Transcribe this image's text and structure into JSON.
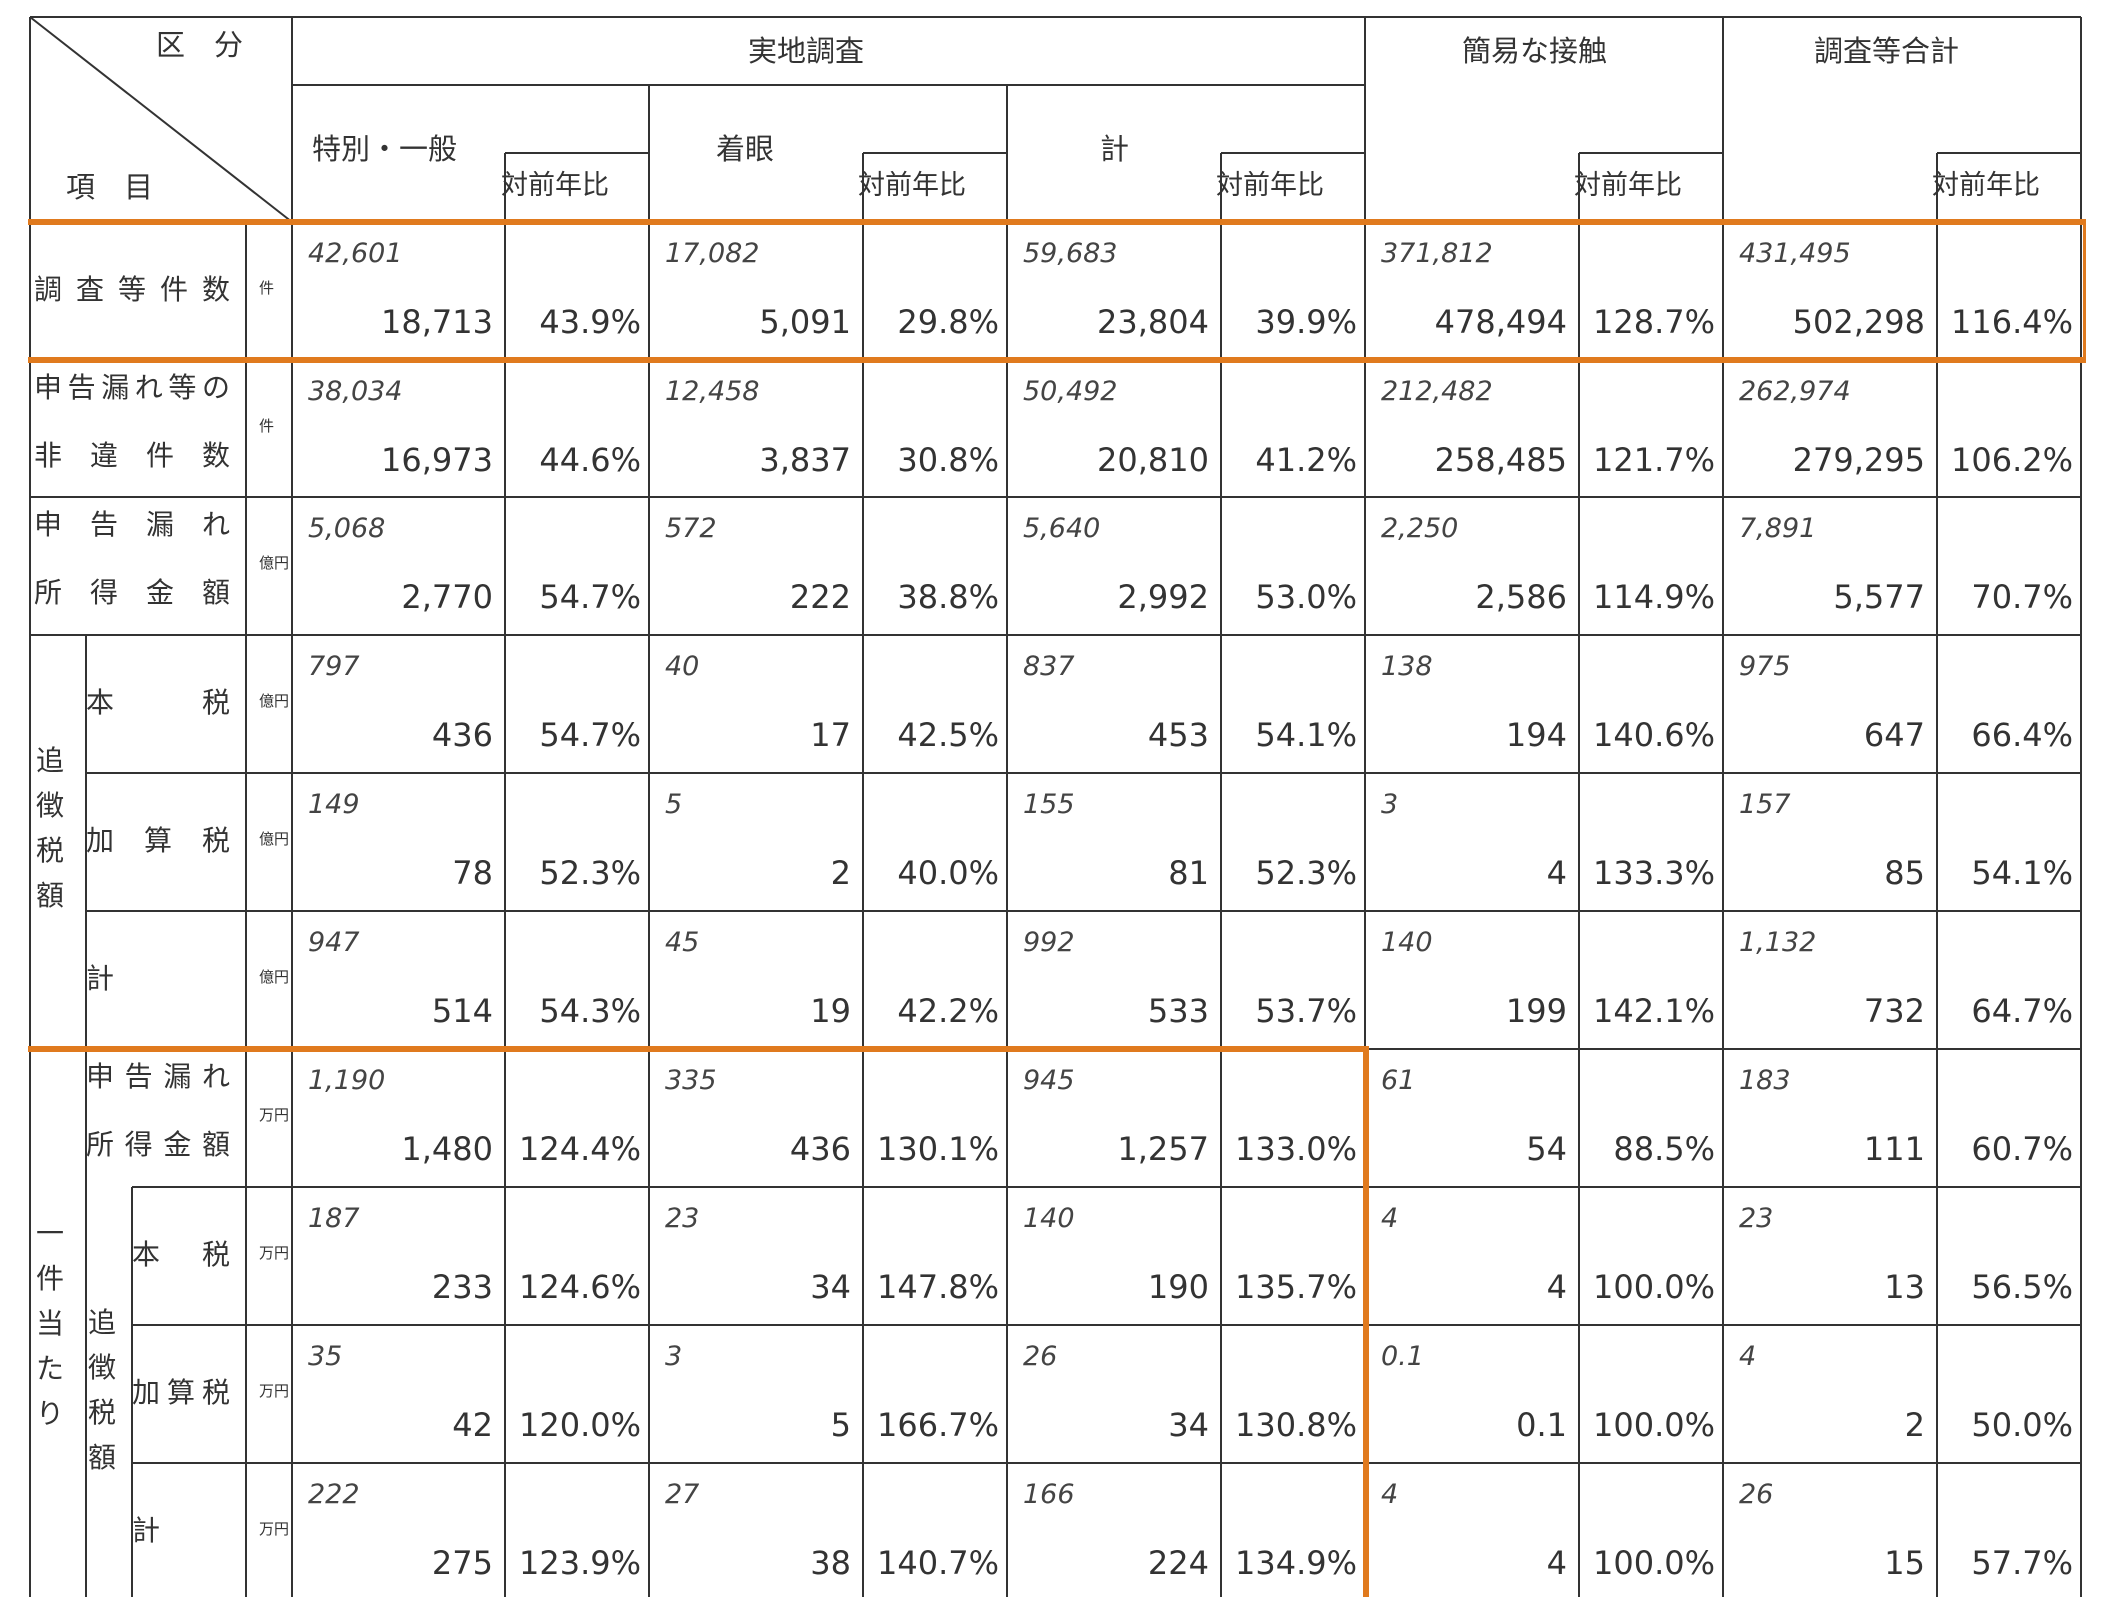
{
  "header": {
    "corner_top": "区　分",
    "corner_bottom": "項　目",
    "group_jitchi": "実地調査",
    "group_kan-i": "簡易な接触",
    "group_total": "調査等合計",
    "tokubetsu": "特別・一般",
    "chakugan": "着眼",
    "kei": "計",
    "ratio": "対前年比"
  },
  "rows": [
    {
      "label": [
        "調査等件数"
      ],
      "unit": "件",
      "values": [
        [
          "42,601",
          "18,713",
          "43.9%"
        ],
        [
          "17,082",
          "5,091",
          "29.8%"
        ],
        [
          "59,683",
          "23,804",
          "39.9%"
        ],
        [
          "371,812",
          "478,494",
          "128.7%"
        ],
        [
          "431,495",
          "502,298",
          "116.4%"
        ]
      ]
    },
    {
      "label": [
        "申告漏れ等の",
        "非違件数"
      ],
      "unit": "件",
      "values": [
        [
          "38,034",
          "16,973",
          "44.6%"
        ],
        [
          "12,458",
          "3,837",
          "30.8%"
        ],
        [
          "50,492",
          "20,810",
          "41.2%"
        ],
        [
          "212,482",
          "258,485",
          "121.7%"
        ],
        [
          "262,974",
          "279,295",
          "106.2%"
        ]
      ]
    },
    {
      "label": [
        "申告漏れ",
        "所得金額"
      ],
      "unit": "億円",
      "values": [
        [
          "5,068",
          "2,770",
          "54.7%"
        ],
        [
          "572",
          "222",
          "38.8%"
        ],
        [
          "5,640",
          "2,992",
          "53.0%"
        ],
        [
          "2,250",
          "2,586",
          "114.9%"
        ],
        [
          "7,891",
          "5,577",
          "70.7%"
        ]
      ]
    },
    {
      "label": [
        "本　　税"
      ],
      "unit": "億円",
      "values": [
        [
          "797",
          "436",
          "54.7%"
        ],
        [
          "40",
          "17",
          "42.5%"
        ],
        [
          "837",
          "453",
          "54.1%"
        ],
        [
          "138",
          "194",
          "140.6%"
        ],
        [
          "975",
          "647",
          "66.4%"
        ]
      ]
    },
    {
      "label": [
        "加算税"
      ],
      "unit": "億円",
      "values": [
        [
          "149",
          "78",
          "52.3%"
        ],
        [
          "5",
          "2",
          "40.0%"
        ],
        [
          "155",
          "81",
          "52.3%"
        ],
        [
          "3",
          "4",
          "133.3%"
        ],
        [
          "157",
          "85",
          "54.1%"
        ]
      ]
    },
    {
      "label": [
        "計"
      ],
      "unit": "億円",
      "values": [
        [
          "947",
          "514",
          "54.3%"
        ],
        [
          "45",
          "19",
          "42.2%"
        ],
        [
          "992",
          "533",
          "53.7%"
        ],
        [
          "140",
          "199",
          "142.1%"
        ],
        [
          "1,132",
          "732",
          "64.7%"
        ]
      ]
    },
    {
      "label": [
        "申告漏れ",
        "所得金額"
      ],
      "unit": "万円",
      "values": [
        [
          "1,190",
          "1,480",
          "124.4%"
        ],
        [
          "335",
          "436",
          "130.1%"
        ],
        [
          "945",
          "1,257",
          "133.0%"
        ],
        [
          "61",
          "54",
          "88.5%"
        ],
        [
          "183",
          "111",
          "60.7%"
        ]
      ]
    },
    {
      "label": [
        "本　税"
      ],
      "unit": "万円",
      "values": [
        [
          "187",
          "233",
          "124.6%"
        ],
        [
          "23",
          "34",
          "147.8%"
        ],
        [
          "140",
          "190",
          "135.7%"
        ],
        [
          "4",
          "4",
          "100.0%"
        ],
        [
          "23",
          "13",
          "56.5%"
        ]
      ]
    },
    {
      "label": [
        "加算税"
      ],
      "unit": "万円",
      "values": [
        [
          "35",
          "42",
          "120.0%"
        ],
        [
          "3",
          "5",
          "166.7%"
        ],
        [
          "26",
          "34",
          "130.8%"
        ],
        [
          "0.1",
          "0.1",
          "100.0%"
        ],
        [
          "4",
          "2",
          "50.0%"
        ]
      ]
    },
    {
      "label": [
        "計"
      ],
      "unit": "万円",
      "values": [
        [
          "222",
          "275",
          "123.9%"
        ],
        [
          "27",
          "38",
          "140.7%"
        ],
        [
          "166",
          "224",
          "134.9%"
        ],
        [
          "4",
          "4",
          "100.0%"
        ],
        [
          "26",
          "15",
          "57.7%"
        ]
      ]
    }
  ],
  "side_labels": {
    "tsuicho": "追徴税額",
    "ikken": "一件当たり",
    "tsuicho2": "追徴税額"
  },
  "colors": {
    "grid": "#333333",
    "highlight": "#E07A1E"
  }
}
